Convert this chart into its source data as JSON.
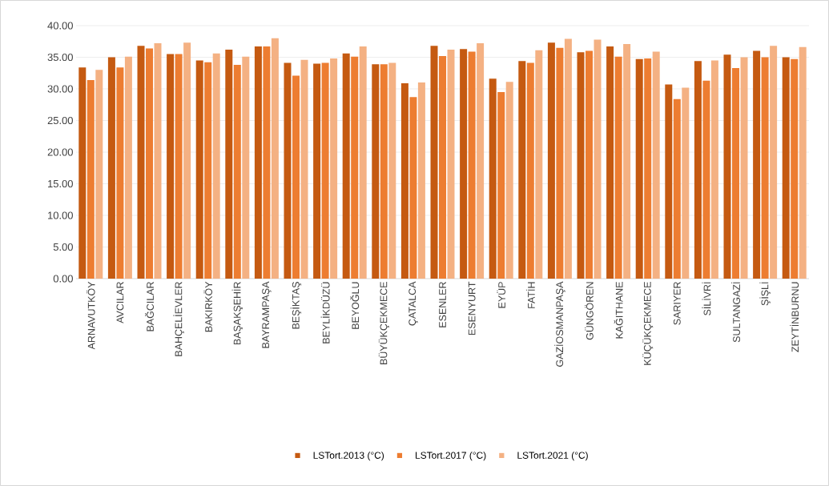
{
  "chart_data": {
    "type": "bar",
    "categories": [
      "ARNAVUTKÖY",
      "AVCILAR",
      "BAĞCILAR",
      "BAHÇELİEVLER",
      "BAKIRKÖY",
      "BAŞAKŞEHİR",
      "BAYRAMPAŞA",
      "BEŞİKTAŞ",
      "BEYLİKDÜZÜ",
      "BEYOĞLU",
      "BÜYÜKÇEKMECE",
      "ÇATALCA",
      "ESENLER",
      "ESENYURT",
      "EYÜP",
      "FATİH",
      "GAZİOSMANPAŞA",
      "GÜNGÖREN",
      "KAĞITHANE",
      "KÜÇÜKÇEKMECE",
      "SARIYER",
      "SİLİVRİ",
      "SULTANGAZİ",
      "ŞİŞLİ",
      "ZEYTİNBURNU"
    ],
    "series": [
      {
        "name": "LSTort.2013 (°C)",
        "color": "#c55a11",
        "values": [
          33.4,
          35.0,
          36.8,
          35.5,
          34.5,
          36.2,
          36.7,
          34.1,
          34.0,
          35.6,
          33.9,
          30.9,
          36.8,
          36.3,
          31.6,
          34.4,
          37.3,
          35.8,
          36.7,
          34.7,
          30.7,
          34.4,
          35.4,
          36.0,
          35.0
        ]
      },
      {
        "name": "LSTort.2017 (°C)",
        "color": "#ed7d31",
        "values": [
          31.4,
          33.4,
          36.4,
          35.5,
          34.2,
          33.8,
          36.7,
          32.1,
          34.1,
          35.1,
          33.9,
          28.7,
          35.2,
          35.9,
          29.5,
          34.1,
          36.5,
          36.0,
          35.1,
          34.8,
          28.4,
          31.3,
          33.3,
          35.0,
          34.7
        ]
      },
      {
        "name": "LSTort.2021 (°C)",
        "color": "#f4b183",
        "values": [
          33.0,
          35.1,
          37.2,
          37.3,
          35.6,
          35.1,
          38.0,
          34.6,
          34.8,
          36.7,
          34.1,
          31.0,
          36.2,
          37.2,
          31.1,
          36.1,
          37.9,
          37.8,
          37.1,
          35.9,
          30.2,
          34.5,
          35.0,
          36.8,
          36.6
        ]
      }
    ],
    "ylim": [
      0,
      40
    ],
    "yticks": [
      {
        "value": 0,
        "label": "0.00"
      },
      {
        "value": 5,
        "label": "5.00"
      },
      {
        "value": 10,
        "label": "10.00"
      },
      {
        "value": 15,
        "label": "15.00"
      },
      {
        "value": 20,
        "label": "20.00"
      },
      {
        "value": 25,
        "label": "25.00"
      },
      {
        "value": 30,
        "label": "30.00"
      },
      {
        "value": 35,
        "label": "35.00"
      },
      {
        "value": 40,
        "label": "40.00"
      }
    ],
    "grid": "y",
    "legend": "bottom"
  }
}
